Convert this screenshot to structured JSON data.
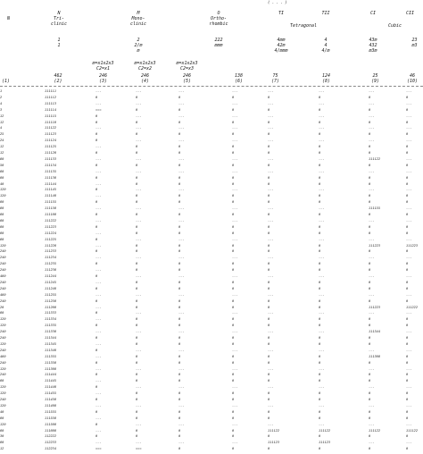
{
  "topnote": "( . . . )",
  "headers": {
    "n": "N",
    "triclinic": "N\nTri-\nclinic",
    "monoclinic": "M\nMono-\nclinic",
    "ortho": "O\nOrtho-\nrhombic",
    "tetragonal_ti": "TI",
    "tetragonal_tii": "TII",
    "tetragonal": "Tetragonal",
    "cubic_ci": "CI",
    "cubic_cii": "CII",
    "cubic": "Cubic",
    "sym_tri": "1\n1",
    "sym_mono": "2\n2/m\nm",
    "sym_ortho": "222\nmmm",
    "sym_ti": "4mm\n42m\n4/mmm",
    "sym_tii": "4\n4\n4/m",
    "sym_ci": "43m\n432\nm3m",
    "sym_cii": "23\nm3",
    "sub_m1": "m=x1x2x3\nC2=x1",
    "sub_m2": "m=x1x2x3\nC2=x2",
    "sub_m3": "m=x1x2x3\nC2=x3",
    "label_1": "(1)",
    "cnt_tri": "462\n(2)",
    "cnt_m1": "246\n(3)",
    "cnt_m2": "246\n(4)",
    "cnt_m3": "246\n(5)",
    "cnt_o": "138\n(6)",
    "cnt_ti": "75\n(7)",
    "cnt_tii": "124\n(8)",
    "cnt_ci": "25\n(9)",
    "cnt_cii": "46\n(10)"
  },
  "rows": [
    [
      "1",
      "111111",
      "---",
      "---",
      "---",
      "---",
      "---",
      "---",
      "---",
      "---"
    ],
    [
      "2",
      "111112",
      "0",
      "0",
      "0",
      "0",
      "0",
      "0",
      "0",
      "0"
    ],
    [
      "4",
      "111113",
      "---",
      "---",
      "---",
      "---",
      "---",
      "---",
      "---",
      "---"
    ],
    [
      "3",
      "111114",
      "===",
      "0",
      "0",
      "0",
      "0",
      "0",
      "0",
      "0"
    ],
    [
      "12",
      "111115",
      "0",
      "---",
      "---",
      "---",
      "---",
      "---",
      "---",
      "---"
    ],
    [
      "12",
      "111116",
      "0",
      "0",
      "0",
      "0",
      "0",
      "0",
      "0",
      "0"
    ],
    [
      "4",
      "111122",
      "---",
      "---",
      "---",
      "---",
      "---",
      "---",
      "---",
      "---"
    ],
    [
      "25",
      "111123",
      "0",
      "0",
      "0",
      "0",
      "0",
      "0",
      "0",
      "0"
    ],
    [
      "24",
      "111124",
      "0",
      "---",
      "---",
      "---",
      "---",
      "---",
      "---",
      "---"
    ],
    [
      "12",
      "111125",
      "---",
      "0",
      "0",
      "0",
      "0",
      "0",
      "0",
      "0"
    ],
    [
      "12",
      "111126",
      "0",
      "0",
      "0",
      "0",
      "0",
      "0",
      "0",
      "0"
    ],
    [
      "80",
      "111133",
      "---",
      "---",
      "---",
      "---",
      "---",
      "---",
      "111122",
      "---"
    ],
    [
      "50",
      "111134",
      "0",
      "0",
      "0",
      "0",
      "0",
      "0",
      "0",
      "0"
    ],
    [
      "60",
      "111135",
      "---",
      "---",
      "---",
      "---",
      "---",
      "---",
      "---",
      "---"
    ],
    [
      "60",
      "111136",
      "0",
      "0",
      "0",
      "0",
      "0",
      "0",
      "0",
      "0"
    ],
    [
      "40",
      "111144",
      "---",
      "0",
      "0",
      "0",
      "0",
      "0",
      "0",
      "0"
    ],
    [
      "120",
      "111145",
      "0",
      "---",
      "---",
      "---",
      "---",
      "---",
      "---",
      "---"
    ],
    [
      "120",
      "111146",
      "---",
      "0",
      "0",
      "0",
      "0",
      "0",
      "0",
      "0"
    ],
    [
      "60",
      "111155",
      "0",
      "0",
      "0",
      "0",
      "0",
      "0",
      "0",
      "0"
    ],
    [
      "80",
      "111156",
      "---",
      "---",
      "---",
      "---",
      "---",
      "---",
      "111155",
      "---"
    ],
    [
      "60",
      "111166",
      "0",
      "0",
      "0",
      "0",
      "0",
      "0",
      "0",
      "0"
    ],
    [
      "60",
      "111222",
      "---",
      "---",
      "---",
      "---",
      "---",
      "---",
      "---",
      "---"
    ],
    [
      "60",
      "111223",
      "0",
      "0",
      "0",
      "0",
      "0",
      "0",
      "0",
      "0"
    ],
    [
      "60",
      "111224",
      "---",
      "0",
      "0",
      "0",
      "0",
      "0",
      "0",
      "0"
    ],
    [
      "80",
      "111225",
      "0",
      "---",
      "---",
      "---",
      "---",
      "---",
      "---",
      "---"
    ],
    [
      "120",
      "111226",
      "---",
      "0",
      "0",
      "0",
      "0",
      "0",
      "111223",
      "111223"
    ],
    [
      "240",
      "111233",
      "0",
      "0",
      "0",
      "0",
      "0",
      "0",
      "0",
      "0"
    ],
    [
      "240",
      "111234",
      "---",
      "---",
      "---",
      "---",
      "---",
      "---",
      "---",
      "---"
    ],
    [
      "240",
      "111235",
      "0",
      "0",
      "0",
      "0",
      "0",
      "0",
      "0",
      "0"
    ],
    [
      "240",
      "111236",
      "---",
      "0",
      "0",
      "0",
      "0",
      "0",
      "0",
      "0"
    ],
    [
      "480",
      "111244",
      "0",
      "---",
      "---",
      "---",
      "---",
      "---",
      "---",
      "---"
    ],
    [
      "240",
      "111245",
      "---",
      "0",
      "0",
      "0",
      "0",
      "0",
      "0",
      "0"
    ],
    [
      "240",
      "111246",
      "0",
      "0",
      "0",
      "0",
      "0",
      "0",
      "0",
      "0"
    ],
    [
      "480",
      "111255",
      "---",
      "---",
      "---",
      "---",
      "---",
      "---",
      "---",
      "---"
    ],
    [
      "240",
      "111256",
      "0",
      "0",
      "0",
      "0",
      "0",
      "0",
      "0",
      "0"
    ],
    [
      "20",
      "111266",
      "---",
      "0",
      "0",
      "0",
      "0",
      "0",
      "111223",
      "111222"
    ],
    [
      "60",
      "111333",
      "0",
      "---",
      "---",
      "---",
      "---",
      "---",
      "---",
      "---"
    ],
    [
      "120",
      "111334",
      "---",
      "0",
      "0",
      "0",
      "0",
      "0",
      "0",
      "0"
    ],
    [
      "120",
      "111335",
      "0",
      "0",
      "0",
      "0",
      "0",
      "0",
      "0",
      "0"
    ],
    [
      "240",
      "111336",
      "---",
      "---",
      "---",
      "---",
      "---",
      "---",
      "111344",
      "---"
    ],
    [
      "240",
      "111344",
      "0",
      "0",
      "0",
      "0",
      "0",
      "0",
      "0",
      "0"
    ],
    [
      "120",
      "111345",
      "---",
      "0",
      "0",
      "0",
      "0",
      "0",
      "0",
      "0"
    ],
    [
      "240",
      "111346",
      "0",
      "---",
      "---",
      "---",
      "---",
      "---",
      "---",
      "---"
    ],
    [
      "480",
      "111355",
      "---",
      "0",
      "0",
      "0",
      "0",
      "0",
      "111366",
      "0"
    ],
    [
      "240",
      "111356",
      "0",
      "0",
      "0",
      "0",
      "0",
      "0",
      "0",
      "0"
    ],
    [
      "120",
      "111366",
      "---",
      "---",
      "---",
      "---",
      "---",
      "---",
      "---",
      "---"
    ],
    [
      "240",
      "111444",
      "0",
      "0",
      "0",
      "0",
      "0",
      "0",
      "0",
      "0"
    ],
    [
      "60",
      "111445",
      "---",
      "0",
      "0",
      "0",
      "0",
      "0",
      "0",
      "0"
    ],
    [
      "120",
      "111446",
      "0",
      "---",
      "---",
      "---",
      "---",
      "---",
      "---",
      "---"
    ],
    [
      "120",
      "111455",
      "---",
      "0",
      "0",
      "0",
      "0",
      "0",
      "0",
      "0"
    ],
    [
      "240",
      "111456",
      "0",
      "0",
      "0",
      "0",
      "0",
      "0",
      "0",
      "0"
    ],
    [
      "120",
      "111466",
      "---",
      "---",
      "---",
      "---",
      "---",
      "---",
      "---",
      "---"
    ],
    [
      "40",
      "111555",
      "0",
      "0",
      "0",
      "0",
      "0",
      "0",
      "0",
      "0"
    ],
    [
      "60",
      "111556",
      "---",
      "0",
      "0",
      "0",
      "0",
      "0",
      "0",
      "0"
    ],
    [
      "120",
      "111566",
      "0",
      "---",
      "---",
      "---",
      "---",
      "---",
      "---",
      "---"
    ],
    [
      "60",
      "111666",
      "---",
      "0",
      "0",
      "0",
      "111122",
      "111122",
      "111122",
      "111122"
    ],
    [
      "30",
      "112222",
      "0",
      "0",
      "0",
      "0",
      "0",
      "0",
      "0",
      "0"
    ],
    [
      "60",
      "112233",
      "---",
      "---",
      "---",
      "---",
      "111123",
      "111123",
      "---",
      "---"
    ],
    [
      "12",
      "112234",
      "===",
      "===",
      "0",
      "0",
      "0",
      "0",
      "0",
      "0"
    ]
  ]
}
